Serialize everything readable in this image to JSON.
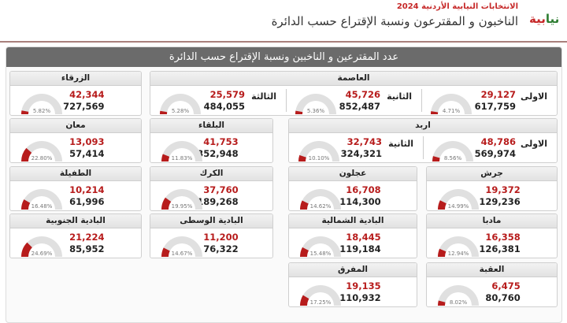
{
  "header": {
    "subtitle": "الانتخابات النيابية الأردنية 2024",
    "title": "الناخبون و المقترعون ونسبة الإقتراع حسب الدائرة",
    "logo_text": "نيابية 2024"
  },
  "panel_title": "عدد المقترعين و الناخبين ونسبة الإقتراع حسب الدائرة",
  "colors": {
    "accent": "#b71c1c",
    "gauge_track": "#e0e0e0",
    "header_bar": "#6b6b6b"
  },
  "districts": [
    {
      "name": "العاصمة",
      "subs": [
        {
          "label": "الاولى",
          "candidates": "29,127",
          "voters": "617,759",
          "percent": 4.71
        },
        {
          "label": "الثانية",
          "candidates": "45,726",
          "voters": "852,487",
          "percent": 5.36
        },
        {
          "label": "الثالثة",
          "candidates": "25,579",
          "voters": "484,055",
          "percent": 5.28
        }
      ]
    },
    {
      "name": "الزرقاء",
      "subs": [
        {
          "label": "",
          "candidates": "42,344",
          "voters": "727,569",
          "percent": 5.82
        }
      ]
    },
    {
      "name": "اربد",
      "subs": [
        {
          "label": "الاولى",
          "candidates": "48,786",
          "voters": "569,974",
          "percent": 8.56
        },
        {
          "label": "الثانية",
          "candidates": "32,743",
          "voters": "324,321",
          "percent": 10.1
        }
      ]
    },
    {
      "name": "البلقاء",
      "subs": [
        {
          "label": "",
          "candidates": "41,753",
          "voters": "352,948",
          "percent": 11.83
        }
      ]
    },
    {
      "name": "معان",
      "subs": [
        {
          "label": "",
          "candidates": "13,093",
          "voters": "57,414",
          "percent": 22.8
        }
      ]
    },
    {
      "name": "جرش",
      "subs": [
        {
          "label": "",
          "candidates": "19,372",
          "voters": "129,236",
          "percent": 14.99
        }
      ]
    },
    {
      "name": "عجلون",
      "subs": [
        {
          "label": "",
          "candidates": "16,708",
          "voters": "114,300",
          "percent": 14.62
        }
      ]
    },
    {
      "name": "الكرك",
      "subs": [
        {
          "label": "",
          "candidates": "37,760",
          "voters": "189,268",
          "percent": 19.95
        }
      ]
    },
    {
      "name": "الطفيلة",
      "subs": [
        {
          "label": "",
          "candidates": "10,214",
          "voters": "61,996",
          "percent": 16.48
        }
      ]
    },
    {
      "name": "مادبا",
      "subs": [
        {
          "label": "",
          "candidates": "16,358",
          "voters": "126,381",
          "percent": 12.94
        }
      ]
    },
    {
      "name": "البادية الشمالية",
      "subs": [
        {
          "label": "",
          "candidates": "18,445",
          "voters": "119,184",
          "percent": 15.48
        }
      ]
    },
    {
      "name": "البادية الوسطى",
      "subs": [
        {
          "label": "",
          "candidates": "11,200",
          "voters": "76,322",
          "percent": 14.67
        }
      ]
    },
    {
      "name": "البادية الجنوبية",
      "subs": [
        {
          "label": "",
          "candidates": "21,224",
          "voters": "85,952",
          "percent": 24.69
        }
      ]
    },
    {
      "name": "العقبة",
      "subs": [
        {
          "label": "",
          "candidates": "6,475",
          "voters": "80,760",
          "percent": 8.02
        }
      ]
    },
    {
      "name": "المفرق",
      "subs": [
        {
          "label": "",
          "candidates": "19,135",
          "voters": "110,932",
          "percent": 17.25
        }
      ]
    }
  ]
}
